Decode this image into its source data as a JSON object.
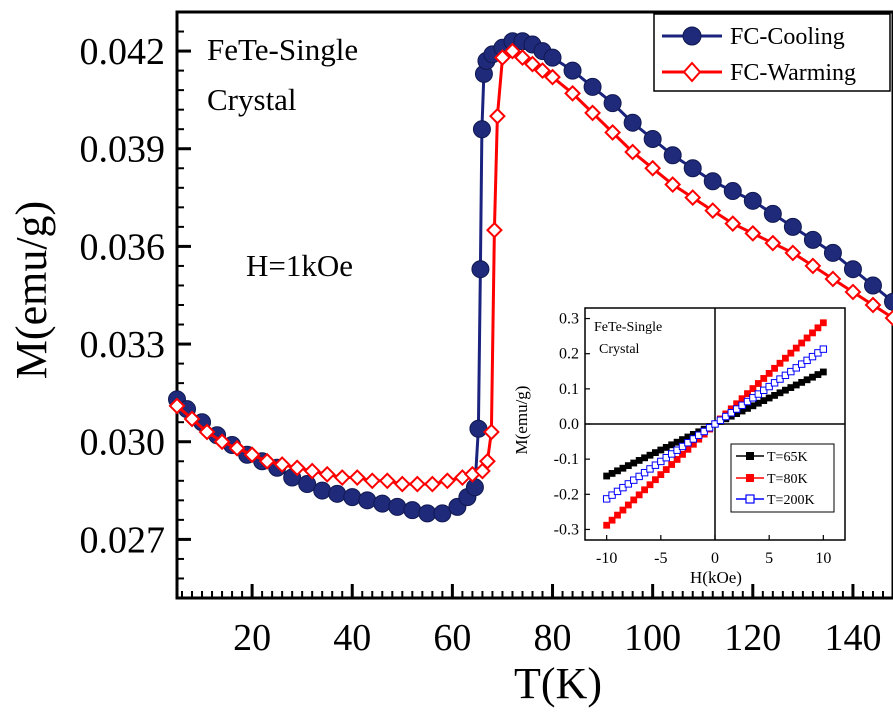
{
  "chart_data": [
    {
      "type": "scatter",
      "title": "",
      "annotations": [
        "FeTe-Single",
        "Crystal",
        "H=1kOe"
      ],
      "xlabel": "T(K)",
      "ylabel": "M(emu/g)",
      "xlim": [
        5,
        148
      ],
      "ylim": [
        0.0252,
        0.0432
      ],
      "xticks": [
        20,
        40,
        60,
        80,
        100,
        120,
        140
      ],
      "xtick_labels": [
        "20",
        "40",
        "60",
        "80",
        "100",
        "120",
        "140"
      ],
      "yticks": [
        0.027,
        0.03,
        0.033,
        0.036,
        0.039,
        0.042
      ],
      "ytick_labels": [
        "0.027",
        "0.030",
        "0.033",
        "0.036",
        "0.039",
        "0.042"
      ],
      "legend_position": "top-right",
      "series": [
        {
          "name": "FC-Cooling",
          "color": "#1a237e",
          "marker": "filled-circle",
          "x": [
            5,
            7,
            10,
            13,
            16,
            19,
            22,
            25,
            28,
            31,
            34,
            37,
            40,
            43,
            46,
            49,
            52,
            55,
            58,
            61,
            63,
            64.5,
            65.2,
            65.6,
            65.9,
            66.3,
            66.8,
            68,
            70,
            72,
            74,
            76,
            78,
            80,
            84,
            88,
            92,
            96,
            100,
            104,
            108,
            112,
            116,
            120,
            124,
            128,
            132,
            136,
            140,
            144,
            148
          ],
          "y": [
            0.0313,
            0.031,
            0.0306,
            0.0302,
            0.0299,
            0.0296,
            0.0294,
            0.0292,
            0.0289,
            0.0287,
            0.0285,
            0.0284,
            0.0283,
            0.0282,
            0.0281,
            0.028,
            0.0279,
            0.0278,
            0.0278,
            0.028,
            0.0283,
            0.0286,
            0.0304,
            0.0353,
            0.0396,
            0.0413,
            0.0417,
            0.0419,
            0.0421,
            0.0423,
            0.0423,
            0.0422,
            0.042,
            0.0418,
            0.0414,
            0.0409,
            0.0404,
            0.0398,
            0.0393,
            0.0388,
            0.0384,
            0.038,
            0.0377,
            0.0374,
            0.037,
            0.0366,
            0.0362,
            0.0358,
            0.0353,
            0.0348,
            0.0343
          ]
        },
        {
          "name": "FC-Warming",
          "color": "#ff0000",
          "marker": "open-diamond",
          "x": [
            5,
            8,
            11,
            14,
            17,
            20,
            23,
            26,
            29,
            32,
            35,
            38,
            41,
            44,
            47,
            50,
            53,
            56,
            59,
            62,
            64,
            66,
            67,
            67.8,
            68.4,
            69,
            70,
            72,
            74,
            76,
            78,
            80,
            84,
            88,
            92,
            96,
            100,
            104,
            108,
            112,
            116,
            120,
            124,
            128,
            132,
            136,
            140,
            144,
            148
          ],
          "y": [
            0.0311,
            0.0307,
            0.0303,
            0.03,
            0.0298,
            0.0296,
            0.0294,
            0.0293,
            0.0292,
            0.0291,
            0.029,
            0.0289,
            0.0289,
            0.0288,
            0.0288,
            0.0287,
            0.0287,
            0.0287,
            0.0288,
            0.0289,
            0.029,
            0.0291,
            0.0294,
            0.0303,
            0.0365,
            0.04,
            0.0418,
            0.042,
            0.0418,
            0.0416,
            0.0414,
            0.0412,
            0.0407,
            0.0401,
            0.0395,
            0.0389,
            0.0384,
            0.0379,
            0.0375,
            0.0371,
            0.0367,
            0.0364,
            0.0361,
            0.0358,
            0.0354,
            0.035,
            0.0346,
            0.0342,
            0.0338
          ]
        }
      ]
    },
    {
      "type": "line",
      "title": "",
      "annotations": [
        "FeTe-Single",
        "Crystal"
      ],
      "xlabel": "H(kOe)",
      "ylabel": "M(emu/g)",
      "xlim": [
        -12,
        12
      ],
      "ylim": [
        -0.33,
        0.33
      ],
      "xticks": [
        -10,
        -5,
        0,
        5,
        10
      ],
      "xtick_labels": [
        "-10",
        "-5",
        "0",
        "5",
        "10"
      ],
      "yticks": [
        -0.3,
        -0.2,
        -0.1,
        0.0,
        0.1,
        0.2,
        0.3
      ],
      "ytick_labels": [
        "-0.3",
        "-0.2",
        "-0.1",
        "0.0",
        "0.1",
        "0.2",
        "0.3"
      ],
      "legend_position": "bottom-right",
      "series": [
        {
          "name": "T=65K",
          "color": "#000000",
          "marker": "filled-square",
          "x": [
            -10,
            10
          ],
          "y": [
            -0.148,
            0.148
          ]
        },
        {
          "name": "T=80K",
          "color": "#ff0000",
          "marker": "filled-square",
          "x": [
            -10,
            10
          ],
          "y": [
            -0.288,
            0.288
          ]
        },
        {
          "name": "T=200K",
          "color": "#0000ff",
          "marker": "open-square",
          "x": [
            -10,
            10
          ],
          "y": [
            -0.213,
            0.213
          ]
        }
      ]
    }
  ]
}
